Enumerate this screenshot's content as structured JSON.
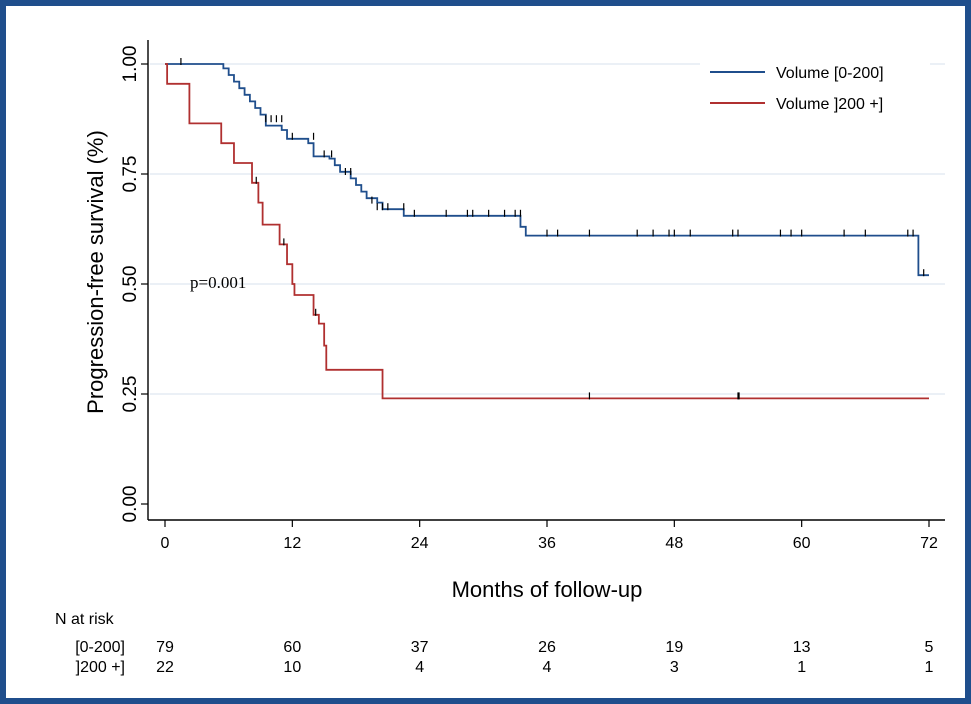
{
  "chart_data": {
    "type": "line",
    "subtype": "kaplan-meier",
    "title": "",
    "xlabel": "Months of follow-up",
    "ylabel": "Progression-free survival (%)",
    "xlim": [
      0,
      72
    ],
    "ylim": [
      0,
      1
    ],
    "xticks": [
      "0",
      "12",
      "24",
      "36",
      "48",
      "60",
      "72"
    ],
    "yticks": [
      "0.00",
      "0.25",
      "0.50",
      "0.75",
      "1.00"
    ],
    "grid": "horizontal",
    "legend_position": "top-right",
    "annotation": "p=0.001",
    "series": [
      {
        "name": "Volume [0-200]",
        "color": "#1f4e8c",
        "steps": [
          [
            0,
            1.0
          ],
          [
            5.5,
            0.99
          ],
          [
            6,
            0.975
          ],
          [
            6.5,
            0.96
          ],
          [
            7,
            0.945
          ],
          [
            7.5,
            0.93
          ],
          [
            8,
            0.915
          ],
          [
            8.5,
            0.9
          ],
          [
            9,
            0.885
          ],
          [
            9.5,
            0.86
          ],
          [
            11,
            0.85
          ],
          [
            11.5,
            0.83
          ],
          [
            13.5,
            0.82
          ],
          [
            14,
            0.79
          ],
          [
            15.5,
            0.785
          ],
          [
            16,
            0.77
          ],
          [
            16.5,
            0.755
          ],
          [
            17.5,
            0.74
          ],
          [
            18,
            0.725
          ],
          [
            18.5,
            0.71
          ],
          [
            19,
            0.695
          ],
          [
            20,
            0.685
          ],
          [
            20.5,
            0.67
          ],
          [
            22.5,
            0.655
          ],
          [
            33.5,
            0.63
          ],
          [
            34,
            0.61
          ],
          [
            71,
            0.52
          ],
          [
            72,
            0.52
          ]
        ],
        "censored": [
          [
            1.5,
            1.0
          ],
          [
            9.5,
            0.87
          ],
          [
            10,
            0.87
          ],
          [
            10.5,
            0.87
          ],
          [
            11,
            0.87
          ],
          [
            12,
            0.83
          ],
          [
            14,
            0.83
          ],
          [
            15,
            0.79
          ],
          [
            15.7,
            0.79
          ],
          [
            17,
            0.75
          ],
          [
            17.5,
            0.75
          ],
          [
            19.5,
            0.685
          ],
          [
            20,
            0.67
          ],
          [
            20.5,
            0.67
          ],
          [
            21,
            0.67
          ],
          [
            22.5,
            0.67
          ],
          [
            23.5,
            0.655
          ],
          [
            26.5,
            0.655
          ],
          [
            28.5,
            0.655
          ],
          [
            29,
            0.655
          ],
          [
            30.5,
            0.655
          ],
          [
            32,
            0.655
          ],
          [
            33,
            0.655
          ],
          [
            33.5,
            0.655
          ],
          [
            36,
            0.61
          ],
          [
            37,
            0.61
          ],
          [
            40,
            0.61
          ],
          [
            44.5,
            0.61
          ],
          [
            46,
            0.61
          ],
          [
            47.5,
            0.61
          ],
          [
            48,
            0.61
          ],
          [
            49.5,
            0.61
          ],
          [
            53.5,
            0.61
          ],
          [
            54,
            0.61
          ],
          [
            58,
            0.61
          ],
          [
            59,
            0.61
          ],
          [
            60,
            0.61
          ],
          [
            64,
            0.61
          ],
          [
            66,
            0.61
          ],
          [
            70,
            0.61
          ],
          [
            70.5,
            0.61
          ],
          [
            71.5,
            0.52
          ]
        ]
      },
      {
        "name": "Volume ]200 +]",
        "color": "#b03030",
        "steps": [
          [
            0,
            1.0
          ],
          [
            0.2,
            0.955
          ],
          [
            2.3,
            0.865
          ],
          [
            5.3,
            0.82
          ],
          [
            6.5,
            0.775
          ],
          [
            8.2,
            0.73
          ],
          [
            8.8,
            0.685
          ],
          [
            9.2,
            0.635
          ],
          [
            10.8,
            0.59
          ],
          [
            11.5,
            0.545
          ],
          [
            12,
            0.5
          ],
          [
            12.2,
            0.475
          ],
          [
            14,
            0.43
          ],
          [
            14.5,
            0.41
          ],
          [
            15,
            0.36
          ],
          [
            15.2,
            0.305
          ],
          [
            20.5,
            0.24
          ],
          [
            72,
            0.24
          ]
        ],
        "censored": [
          [
            8.6,
            0.73
          ],
          [
            11.2,
            0.59
          ],
          [
            14.2,
            0.43
          ],
          [
            40,
            0.24
          ],
          [
            54,
            0.24
          ],
          [
            54.1,
            0.24
          ]
        ]
      }
    ],
    "risk_table": {
      "title": "N at risk",
      "times": [
        "0",
        "12",
        "24",
        "36",
        "48",
        "60",
        "72"
      ],
      "rows": [
        {
          "label": "[0-200]",
          "values": [
            "79",
            "60",
            "37",
            "26",
            "19",
            "13",
            "5"
          ]
        },
        {
          "label": "]200 +]",
          "values": [
            "22",
            "10",
            "4",
            "4",
            "3",
            "1",
            "1"
          ]
        }
      ]
    }
  }
}
